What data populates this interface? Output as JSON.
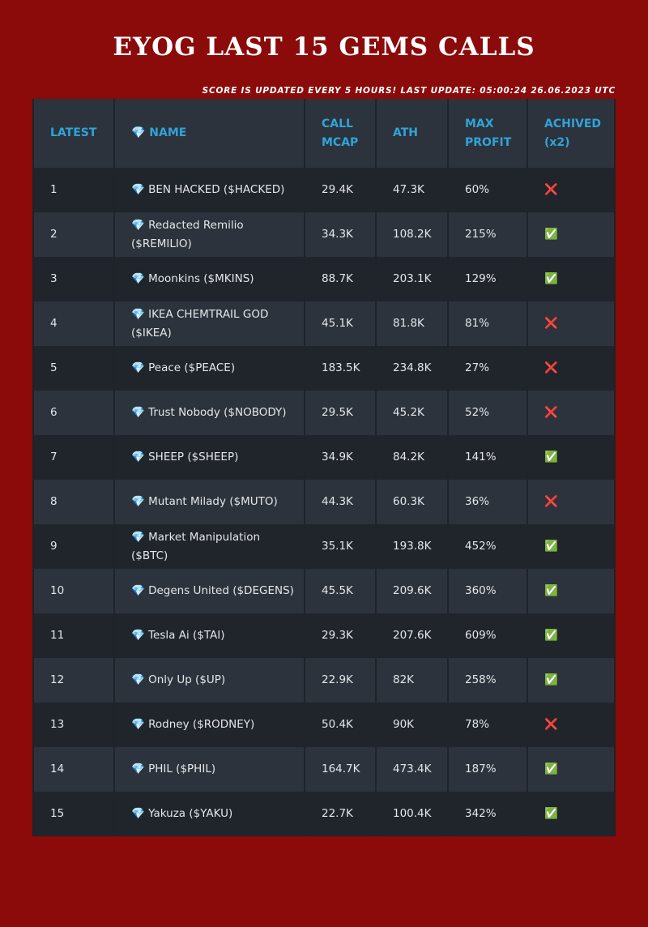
{
  "header": {
    "title": "EYOG LAST 15 GEMS CALLS",
    "subtitle": "SCORE IS UPDATED EVERY 5 HOURS! LAST UPDATE: 05:00:24 26.06.2023 UTC"
  },
  "table": {
    "columns": [
      "LATEST",
      "💎 NAME",
      "CALL MCAP",
      "ATH",
      "MAX PROFIT",
      "ACHIVED (x2)"
    ],
    "rows": [
      [
        "1",
        "💎 BEN HACKED ($HACKED)",
        "29.4K",
        "47.3K",
        "60%",
        "❌"
      ],
      [
        "2",
        "💎 Redacted Remilio ($REMILIO)",
        "34.3K",
        "108.2K",
        "215%",
        "✅"
      ],
      [
        "3",
        "💎 Moonkins ($MKINS)",
        "88.7K",
        "203.1K",
        "129%",
        "✅"
      ],
      [
        "4",
        "💎 IKEA CHEMTRAIL GOD ($IKEA)",
        "45.1K",
        "81.8K",
        "81%",
        "❌"
      ],
      [
        "5",
        "💎 Peace ($PEACE)",
        "183.5K",
        "234.8K",
        "27%",
        "❌"
      ],
      [
        "6",
        "💎 Trust Nobody ($NOBODY)",
        "29.5K",
        "45.2K",
        "52%",
        "❌"
      ],
      [
        "7",
        "💎 SHEEP ($SHEEP)",
        "34.9K",
        "84.2K",
        "141%",
        "✅"
      ],
      [
        "8",
        "💎 Mutant Milady ($MUTO)",
        "44.3K",
        "60.3K",
        "36%",
        "❌"
      ],
      [
        "9",
        "💎 Market Manipulation ($BTC)",
        "35.1K",
        "193.8K",
        "452%",
        "✅"
      ],
      [
        "10",
        "💎 Degens United ($DEGENS)",
        "45.5K",
        "209.6K",
        "360%",
        "✅"
      ],
      [
        "11",
        "💎 Tesla Ai ($TAI)",
        "29.3K",
        "207.6K",
        "609%",
        "✅"
      ],
      [
        "12",
        "💎 Only Up ($UP)",
        "22.9K",
        "82K",
        "258%",
        "✅"
      ],
      [
        "13",
        "💎 Rodney ($RODNEY)",
        "50.4K",
        "90K",
        "78%",
        "❌"
      ],
      [
        "14",
        "💎 PHIL ($PHIL)",
        "164.7K",
        "473.4K",
        "187%",
        "✅"
      ],
      [
        "15",
        "💎 Yakuza ($YAKU)",
        "22.7K",
        "100.4K",
        "342%",
        "✅"
      ]
    ]
  }
}
